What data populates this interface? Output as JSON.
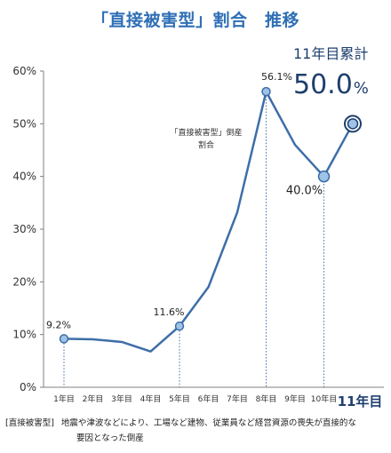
{
  "header": {
    "title": "「直接被害型」割合　推移"
  },
  "cumulative": {
    "label": "11年目累計",
    "value": "50.0",
    "unit": "%"
  },
  "colors": {
    "line": "#3d6ea8",
    "point_fill": "#9ec3e6",
    "title": "#2f6fb5",
    "grid": "#d9d9d9"
  },
  "chart_data": {
    "type": "line",
    "categories": [
      "1年目",
      "2年目",
      "3年目",
      "4年目",
      "5年目",
      "6年目",
      "7年目",
      "8年目",
      "9年目",
      "10年目",
      "11年目"
    ],
    "series": [
      {
        "values": [
          9.2,
          9.1,
          8.6,
          6.8,
          11.6,
          19.0,
          33.2,
          56.1,
          46.0,
          40.0,
          50.0
        ]
      }
    ],
    "y_ticks": [
      "0%",
      "10%",
      "20%",
      "30%",
      "40%",
      "50%",
      "60%"
    ],
    "ylim": [
      0,
      60
    ],
    "grid": false,
    "highlight_indices": [
      0,
      4,
      7,
      9,
      10
    ],
    "data_labels": [
      {
        "index": 0,
        "text": "9.2%"
      },
      {
        "index": 4,
        "text": "11.6%"
      },
      {
        "index": 7,
        "text": "56.1%"
      },
      {
        "index": 9,
        "text": "40.0%"
      }
    ],
    "annotation": {
      "line1": "「直接被害型」倒産",
      "line2": "割合"
    }
  },
  "footnote": {
    "tag": "[直接被害型]",
    "line1": "地震や津波などにより、工場など建物、従業員など経営資源の喪失が直接的な",
    "line2": "要因となった倒産"
  }
}
